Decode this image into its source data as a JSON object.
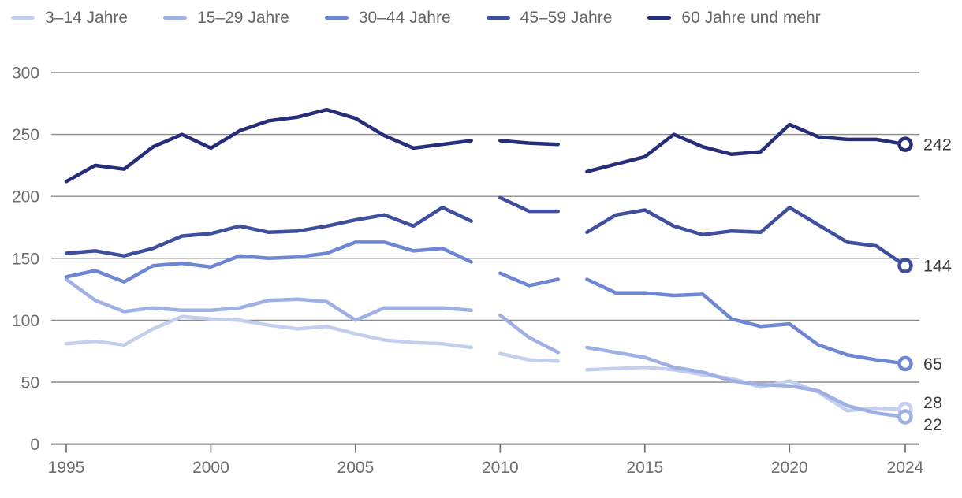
{
  "chart_data": {
    "type": "line",
    "title": "",
    "x": [
      1995,
      1996,
      1997,
      1998,
      1999,
      2000,
      2001,
      2002,
      2003,
      2004,
      2005,
      2006,
      2007,
      2008,
      2009,
      2010,
      2011,
      2012,
      2013,
      2014,
      2015,
      2016,
      2017,
      2018,
      2019,
      2020,
      2021,
      2022,
      2023,
      2024
    ],
    "x_tick_labels": [
      "1995",
      "2000",
      "2005",
      "2010",
      "2015",
      "2020",
      "2024"
    ],
    "x_tick_years": [
      1995,
      2000,
      2005,
      2010,
      2015,
      2020,
      2024
    ],
    "y_ticks": [
      0,
      50,
      100,
      150,
      200,
      250,
      300
    ],
    "ylim": [
      0,
      300
    ],
    "grid": true,
    "legend_position": "top",
    "gap_after_years": [
      2009,
      2012
    ],
    "series": [
      {
        "name": "3–14 Jahre",
        "color": "#c4cfee",
        "end_label": "28",
        "values": [
          81,
          83,
          80,
          93,
          103,
          101,
          100,
          96,
          93,
          95,
          89,
          84,
          82,
          81,
          78,
          73,
          68,
          67,
          60,
          61,
          62,
          60,
          56,
          53,
          46,
          51,
          42,
          27,
          29,
          28
        ]
      },
      {
        "name": "15–29 Jahre",
        "color": "#9fb0e4",
        "end_label": "22",
        "values": [
          133,
          116,
          107,
          110,
          108,
          108,
          110,
          116,
          117,
          115,
          100,
          110,
          110,
          110,
          108,
          104,
          86,
          74,
          78,
          74,
          70,
          62,
          58,
          51,
          48,
          47,
          43,
          31,
          25,
          22
        ]
      },
      {
        "name": "30–44 Jahre",
        "color": "#6e86d4",
        "end_label": "65",
        "values": [
          135,
          140,
          131,
          144,
          146,
          143,
          152,
          150,
          151,
          154,
          163,
          163,
          156,
          158,
          147,
          138,
          128,
          133,
          133,
          122,
          122,
          120,
          121,
          101,
          95,
          97,
          80,
          72,
          68,
          65
        ]
      },
      {
        "name": "45–59 Jahre",
        "color": "#3e4f9e",
        "end_label": "144",
        "values": [
          154,
          156,
          152,
          158,
          168,
          170,
          176,
          171,
          172,
          176,
          181,
          185,
          176,
          191,
          180,
          199,
          188,
          188,
          171,
          185,
          189,
          176,
          169,
          172,
          171,
          191,
          177,
          163,
          160,
          144
        ]
      },
      {
        "name": "60 Jahre und mehr",
        "color": "#252e78",
        "end_label": "242",
        "values": [
          212,
          225,
          222,
          240,
          250,
          239,
          253,
          261,
          264,
          270,
          263,
          249,
          239,
          242,
          245,
          245,
          243,
          242,
          220,
          226,
          232,
          250,
          240,
          234,
          236,
          258,
          248,
          246,
          246,
          242
        ]
      }
    ]
  }
}
